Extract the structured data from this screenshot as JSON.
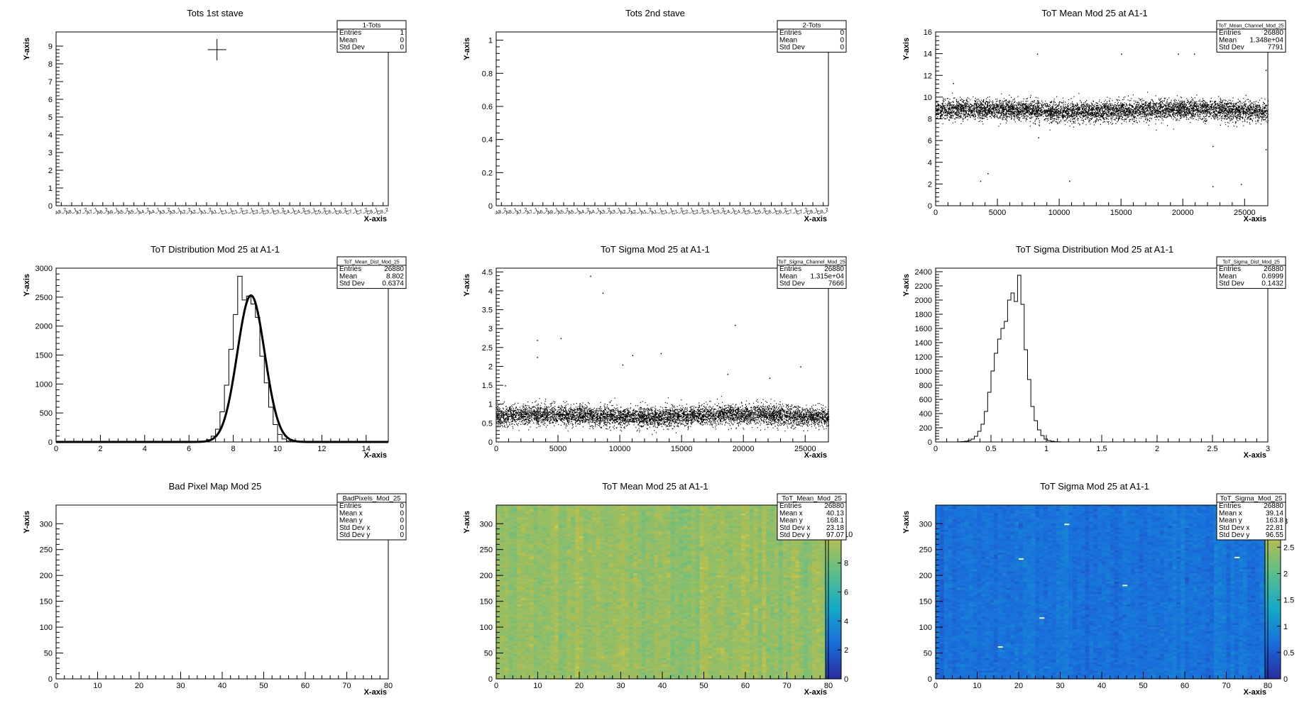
{
  "chart_data": [
    {
      "id": "tots-1st-stave",
      "type": "histogram",
      "title": "Tots 1st stave",
      "xlabel": "X-axis",
      "ylabel": "Y-axis",
      "ylim": [
        0,
        9.8
      ],
      "yticks": [
        0,
        1,
        2,
        3,
        4,
        5,
        6,
        7,
        8,
        9
      ],
      "xticks_categorical": [
        "A8",
        "A8",
        "A7",
        "A7",
        "A6",
        "A6",
        "A5",
        "A5",
        "A4",
        "A4",
        "A3",
        "A3",
        "A2",
        "A2",
        "A1",
        "A1",
        "C1",
        "C1",
        "C2",
        "C2",
        "C3",
        "C3",
        "C4",
        "C4",
        "C5",
        "C5",
        "C6",
        "C6",
        "C7",
        "C7",
        "C8",
        "C8"
      ],
      "xtick_labels": [
        "A8_2",
        "A8_1",
        "A7_2",
        "A7_1",
        "A6_2",
        "A6_1",
        "A5_2",
        "A5_1",
        "A4_2",
        "A4_1",
        "A3_2",
        "A3_1",
        "A2_2",
        "A2_1",
        "A1_2",
        "A1_1",
        "C1_1",
        "C1_2",
        "C2_1",
        "C2_2",
        "C3_1",
        "C3_2",
        "C4_1",
        "C4_2",
        "C5_1",
        "C5_2",
        "C6_1",
        "C6_2",
        "C7_1",
        "C7_2",
        "C8_1",
        "C8_2"
      ],
      "points": [
        {
          "x": "A1_1",
          "y": 8.8,
          "xerr": 0.5,
          "yerr": 0.6
        }
      ],
      "stats": {
        "name": "1-Tots",
        "rows": [
          [
            "Entries",
            "1"
          ],
          [
            "Mean",
            "0"
          ],
          [
            "Std Dev",
            "0"
          ]
        ]
      }
    },
    {
      "id": "tots-2nd-stave",
      "type": "histogram",
      "title": "Tots 2nd stave",
      "xlabel": "X-axis",
      "ylabel": "Y-axis",
      "ylim": [
        0,
        1.05
      ],
      "yticks": [
        0,
        0.2,
        0.4,
        0.6,
        0.8,
        1
      ],
      "xtick_labels": [
        "A8_2",
        "A8_1",
        "A7_2",
        "A7_1",
        "A6_2",
        "A6_1",
        "A5_2",
        "A5_1",
        "A4_2",
        "A4_1",
        "A3_2",
        "A3_1",
        "A2_2",
        "A2_1",
        "A1_2",
        "A1_1",
        "C1_1",
        "C1_2",
        "C2_1",
        "C2_2",
        "C3_1",
        "C3_2",
        "C4_1",
        "C4_2",
        "C5_1",
        "C5_2",
        "C6_1",
        "C6_2",
        "C7_1",
        "C7_2",
        "C8_1",
        "C8_2"
      ],
      "points": [],
      "stats": {
        "name": "2-Tots",
        "rows": [
          [
            "Entries",
            "0"
          ],
          [
            "Mean",
            "0"
          ],
          [
            "Std Dev",
            "0"
          ]
        ]
      }
    },
    {
      "id": "tot-mean-channel",
      "type": "scatter",
      "title": "ToT Mean Mod 25 at A1-1",
      "xlabel": "X-axis",
      "ylabel": "Y-axis",
      "xlim": [
        0,
        26880
      ],
      "ylim": [
        0,
        16
      ],
      "xticks": [
        0,
        5000,
        10000,
        15000,
        20000,
        25000
      ],
      "yticks": [
        0,
        2,
        4,
        6,
        8,
        10,
        12,
        14,
        16
      ],
      "n_points": 26880,
      "band": {
        "mean": 8.8,
        "sigma": 0.45
      },
      "outliers": [
        [
          8200,
          14.0
        ],
        [
          15000,
          14.0
        ],
        [
          19600,
          14.0
        ],
        [
          20900,
          14.0
        ],
        [
          4200,
          3.0
        ],
        [
          3600,
          2.3
        ],
        [
          10800,
          2.3
        ],
        [
          22400,
          1.8
        ],
        [
          24700,
          2.0
        ],
        [
          26700,
          5.2
        ],
        [
          26700,
          12.5
        ],
        [
          1400,
          11.3
        ],
        [
          8300,
          6.3
        ],
        [
          22400,
          5.5
        ]
      ],
      "stats": {
        "name": "ToT_Mean_Channel_Mod_25",
        "rows": [
          [
            "Entries",
            "26880"
          ],
          [
            "Mean",
            "1.348e+04"
          ],
          [
            "Std Dev",
            "7791"
          ]
        ]
      }
    },
    {
      "id": "tot-mean-dist",
      "type": "histogram",
      "title": "ToT Distribution Mod 25 at A1-1",
      "xlabel": "X-axis",
      "ylabel": "Y-axis",
      "xlim": [
        0,
        15
      ],
      "ylim": [
        0,
        3000
      ],
      "xticks": [
        0,
        2,
        4,
        6,
        8,
        10,
        12,
        14
      ],
      "yticks": [
        0,
        500,
        1000,
        1500,
        2000,
        2500,
        3000
      ],
      "bin_edges_start": 6.6,
      "bin_width": 0.2,
      "bin_values": [
        10,
        40,
        100,
        220,
        520,
        980,
        1600,
        2200,
        2860,
        2450,
        2520,
        2380,
        2150,
        1480,
        1020,
        600,
        300,
        130,
        50,
        15
      ],
      "fit": {
        "type": "gaus",
        "amplitude": 2530,
        "mean": 8.8,
        "sigma": 0.62
      },
      "stats": {
        "name": "ToT_Mean_Dist_Mod_25",
        "rows": [
          [
            "Entries",
            "26880"
          ],
          [
            "Mean",
            "8.802"
          ],
          [
            "Std Dev",
            "0.6374"
          ]
        ]
      }
    },
    {
      "id": "tot-sigma-channel",
      "type": "scatter",
      "title": "ToT Sigma Mod 25 at A1-1",
      "xlabel": "X-axis",
      "ylabel": "Y-axis",
      "xlim": [
        0,
        26880
      ],
      "ylim": [
        0,
        4.6
      ],
      "xticks": [
        0,
        5000,
        10000,
        15000,
        20000,
        25000
      ],
      "yticks": [
        0,
        0.5,
        1,
        1.5,
        2,
        2.5,
        3,
        3.5,
        4,
        4.5
      ],
      "n_points": 26880,
      "band": {
        "mean": 0.7,
        "sigma": 0.13
      },
      "outliers": [
        [
          7600,
          4.4
        ],
        [
          8600,
          3.95
        ],
        [
          3300,
          2.7
        ],
        [
          5200,
          2.75
        ],
        [
          11000,
          2.3
        ],
        [
          13300,
          2.35
        ],
        [
          19300,
          3.1
        ],
        [
          10200,
          2.05
        ],
        [
          18700,
          1.8
        ],
        [
          22100,
          1.7
        ],
        [
          24600,
          2.0
        ],
        [
          3300,
          2.25
        ],
        [
          700,
          1.5
        ]
      ],
      "stats": {
        "name": "ToT_Sigma_Channel_Mod_25",
        "rows": [
          [
            "Entries",
            "26880"
          ],
          [
            "Mean",
            "1.315e+04"
          ],
          [
            "Std Dev",
            "7666"
          ]
        ]
      }
    },
    {
      "id": "tot-sigma-dist",
      "type": "histogram",
      "title": "ToT Sigma Distribution Mod 25 at A1-1",
      "xlabel": "X-axis",
      "ylabel": "Y-axis",
      "xlim": [
        0,
        3
      ],
      "ylim": [
        0,
        2450
      ],
      "xticks": [
        0,
        0.5,
        1,
        1.5,
        2,
        2.5,
        3
      ],
      "yticks": [
        0,
        200,
        400,
        600,
        800,
        1000,
        1200,
        1400,
        1600,
        1800,
        2000,
        2200,
        2400
      ],
      "bin_edges_start": 0.2,
      "bin_width": 0.03,
      "bin_values": [
        2,
        5,
        10,
        20,
        40,
        80,
        150,
        250,
        430,
        700,
        1000,
        1250,
        1450,
        1600,
        1700,
        2000,
        2100,
        1980,
        2350,
        1940,
        1300,
        880,
        500,
        300,
        170,
        90,
        40,
        20,
        10,
        4,
        2
      ],
      "stats": {
        "name": "ToT_Sigma_Dist_Mod_25",
        "rows": [
          [
            "Entries",
            "26880"
          ],
          [
            "Mean",
            "0.6999"
          ],
          [
            "Std Dev",
            "0.1432"
          ]
        ]
      }
    },
    {
      "id": "bad-pixel-map",
      "type": "heatmap",
      "title": "Bad Pixel Map Mod 25",
      "xlabel": "X-axis",
      "ylabel": "Y-axis",
      "xlim": [
        0,
        80
      ],
      "ylim": [
        0,
        336
      ],
      "xticks": [
        0,
        10,
        20,
        30,
        40,
        50,
        60,
        70,
        80
      ],
      "yticks": [
        0,
        50,
        100,
        150,
        200,
        250,
        300
      ],
      "filled": false,
      "stats": {
        "name": "BadPixels_Mod_25",
        "rows": [
          [
            "Entries",
            "0"
          ],
          [
            "Mean x",
            "0"
          ],
          [
            "Mean y",
            "0"
          ],
          [
            "Std Dev x",
            "0"
          ],
          [
            "Std Dev y",
            "0"
          ]
        ]
      }
    },
    {
      "id": "tot-mean-map",
      "type": "heatmap",
      "title": "ToT Mean Mod 25 at A1-1",
      "xlabel": "X-axis",
      "ylabel": "Y-axis",
      "xlim": [
        0,
        80
      ],
      "ylim": [
        0,
        336
      ],
      "xticks": [
        0,
        10,
        20,
        30,
        40,
        50,
        60,
        70,
        80
      ],
      "yticks": [
        0,
        50,
        100,
        150,
        200,
        250,
        300
      ],
      "filled": true,
      "z_range": [
        0,
        12
      ],
      "zticks": [
        0,
        2,
        4,
        6,
        8,
        10
      ],
      "z_typical": 8.8,
      "z_spread": 0.6,
      "stats": {
        "name": "ToT_Mean_Mod_25",
        "rows": [
          [
            "Entries",
            "26880"
          ],
          [
            "Mean x",
            "40.13"
          ],
          [
            "Mean y",
            "168.1"
          ],
          [
            "Std Dev x",
            "23.18"
          ],
          [
            "Std Dev y",
            "97.07"
          ]
        ]
      }
    },
    {
      "id": "tot-sigma-map",
      "type": "heatmap",
      "title": "ToT Sigma Mod 25 at A1-1",
      "xlabel": "X-axis",
      "ylabel": "Y-axis",
      "xlim": [
        0,
        80
      ],
      "ylim": [
        0,
        336
      ],
      "xticks": [
        0,
        10,
        20,
        30,
        40,
        50,
        60,
        70,
        80
      ],
      "yticks": [
        0,
        50,
        100,
        150,
        200,
        250,
        300
      ],
      "filled": true,
      "z_range": [
        0,
        3.3
      ],
      "zticks": [
        0,
        0.5,
        1,
        1.5,
        2,
        2.5,
        3
      ],
      "z_typical": 0.7,
      "z_spread": 0.13,
      "hot_pixels": [
        [
          20,
          233
        ],
        [
          72,
          236
        ],
        [
          45,
          182
        ],
        [
          25,
          119
        ],
        [
          15,
          63
        ],
        [
          31,
          300
        ]
      ],
      "stats": {
        "name": "ToT_Sigma_Mod_25",
        "rows": [
          [
            "Entries",
            "26880"
          ],
          [
            "Mean x",
            "39.14"
          ],
          [
            "Mean y",
            "163.8"
          ],
          [
            "Std Dev x",
            "22.81"
          ],
          [
            "Std Dev y",
            "96.55"
          ]
        ]
      }
    }
  ]
}
